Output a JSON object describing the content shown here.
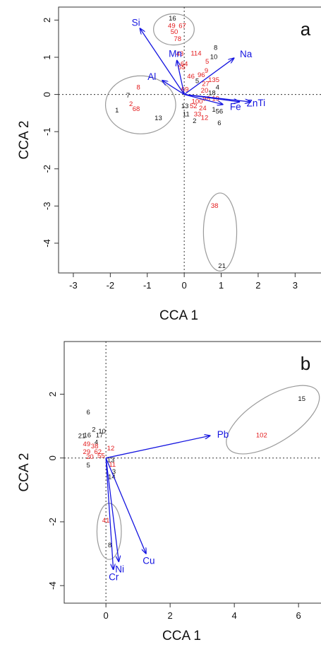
{
  "chart_data": [
    {
      "type": "scatter",
      "panel_label": "a",
      "xlabel": "CCA 1",
      "ylabel": "CCA 2",
      "xlim": [
        -3.4,
        3.7
      ],
      "ylim": [
        -4.8,
        2.35
      ],
      "xticks": [
        -3,
        -2,
        -1,
        0,
        1,
        2,
        3
      ],
      "yticks": [
        -4,
        -3,
        -2,
        -1,
        0,
        1,
        2
      ],
      "colors": {
        "arrow": "#1515e0",
        "red_site": "#e31a1c",
        "black_site": "#111111",
        "ellipse": "#9a9a9a",
        "axis": "#555555"
      },
      "vectors": [
        {
          "name": "Si",
          "x": -1.2,
          "y": 1.78
        },
        {
          "name": "Mn",
          "x": -0.2,
          "y": 0.92
        },
        {
          "name": "Na",
          "x": 1.35,
          "y": 0.98
        },
        {
          "name": "Al",
          "x": -0.6,
          "y": 0.38
        },
        {
          "name": "Zn",
          "x": 1.5,
          "y": -0.2
        },
        {
          "name": "Ti",
          "x": 1.8,
          "y": -0.2
        },
        {
          "name": "Fe",
          "x": 1.05,
          "y": -0.27
        }
      ],
      "sites": [
        {
          "label": "16",
          "x": -0.32,
          "y": 2.06,
          "color": "black"
        },
        {
          "label": "49",
          "x": -0.34,
          "y": 1.86,
          "color": "red"
        },
        {
          "label": "67",
          "x": -0.05,
          "y": 1.86,
          "color": "red"
        },
        {
          "label": "50",
          "x": -0.27,
          "y": 1.69,
          "color": "red"
        },
        {
          "label": "78",
          "x": -0.18,
          "y": 1.5,
          "color": "red"
        },
        {
          "label": "43",
          "x": -0.12,
          "y": 1.1,
          "color": "red"
        },
        {
          "label": "114",
          "x": 0.32,
          "y": 1.11,
          "color": "red"
        },
        {
          "label": "8",
          "x": 0.85,
          "y": 1.27,
          "color": "black"
        },
        {
          "label": "10",
          "x": 0.8,
          "y": 1.02,
          "color": "black"
        },
        {
          "label": "5",
          "x": 0.62,
          "y": 0.9,
          "color": "red"
        },
        {
          "label": "64",
          "x": 0.0,
          "y": 0.83,
          "color": "red"
        },
        {
          "label": "65",
          "x": -0.07,
          "y": 0.74,
          "color": "red"
        },
        {
          "label": "46",
          "x": 0.18,
          "y": 0.5,
          "color": "red"
        },
        {
          "label": "96",
          "x": 0.46,
          "y": 0.53,
          "color": "red"
        },
        {
          "label": "9",
          "x": 0.6,
          "y": 0.65,
          "color": "red"
        },
        {
          "label": "5",
          "x": 0.35,
          "y": 0.37,
          "color": "black"
        },
        {
          "label": "135",
          "x": 0.8,
          "y": 0.4,
          "color": "red"
        },
        {
          "label": "27",
          "x": 0.58,
          "y": 0.3,
          "color": "red"
        },
        {
          "label": "4",
          "x": 0.9,
          "y": 0.2,
          "color": "black"
        },
        {
          "label": "69",
          "x": 0.02,
          "y": 0.14,
          "color": "red"
        },
        {
          "label": "20",
          "x": 0.55,
          "y": 0.12,
          "color": "red"
        },
        {
          "label": "18",
          "x": 0.75,
          "y": 0.05,
          "color": "black"
        },
        {
          "label": "98",
          "x": 0.6,
          "y": -0.1,
          "color": "red"
        },
        {
          "label": "100",
          "x": 0.35,
          "y": -0.18,
          "color": "red"
        },
        {
          "label": "19",
          "x": 0.85,
          "y": -0.1,
          "color": "red"
        },
        {
          "label": "13",
          "x": 0.02,
          "y": -0.3,
          "color": "black"
        },
        {
          "label": "52",
          "x": 0.25,
          "y": -0.3,
          "color": "red"
        },
        {
          "label": "24",
          "x": 0.5,
          "y": -0.36,
          "color": "red"
        },
        {
          "label": "1",
          "x": 0.8,
          "y": -0.4,
          "color": "black"
        },
        {
          "label": "56",
          "x": 0.95,
          "y": -0.45,
          "color": "black"
        },
        {
          "label": "11",
          "x": 0.05,
          "y": -0.52,
          "color": "black"
        },
        {
          "label": "33",
          "x": 0.36,
          "y": -0.52,
          "color": "red"
        },
        {
          "label": "12",
          "x": 0.55,
          "y": -0.62,
          "color": "red"
        },
        {
          "label": "2",
          "x": 0.28,
          "y": -0.7,
          "color": "black"
        },
        {
          "label": "6",
          "x": 0.95,
          "y": -0.76,
          "color": "black"
        },
        {
          "label": "8",
          "x": -1.24,
          "y": 0.2,
          "color": "red"
        },
        {
          "label": "7",
          "x": -1.52,
          "y": -0.02,
          "color": "black"
        },
        {
          "label": "2",
          "x": -1.44,
          "y": -0.25,
          "color": "red"
        },
        {
          "label": "68",
          "x": -1.3,
          "y": -0.38,
          "color": "red"
        },
        {
          "label": "1",
          "x": -1.82,
          "y": -0.42,
          "color": "black"
        },
        {
          "label": "13",
          "x": -0.7,
          "y": -0.63,
          "color": "black"
        },
        {
          "label": "38",
          "x": 0.82,
          "y": -2.98,
          "color": "red"
        },
        {
          "label": "21",
          "x": 1.02,
          "y": -4.6,
          "color": "black"
        }
      ],
      "ellipses": [
        {
          "cx": -0.28,
          "cy": 1.75,
          "rx": 0.55,
          "ry": 0.42
        },
        {
          "cx": -1.18,
          "cy": -0.28,
          "rx": 0.95,
          "ry": 0.78
        },
        {
          "cx": 0.97,
          "cy": -3.7,
          "rx": 0.45,
          "ry": 1.05
        }
      ]
    },
    {
      "type": "scatter",
      "panel_label": "b",
      "xlabel": "CCA 1",
      "ylabel": "CCA 2",
      "xlim": [
        -1.3,
        6.7
      ],
      "ylim": [
        -4.55,
        3.65
      ],
      "xticks": [
        0,
        2,
        4,
        6
      ],
      "yticks": [
        -4,
        -2,
        0,
        2
      ],
      "colors": {
        "arrow": "#1515e0",
        "red_site": "#e31a1c",
        "black_site": "#111111",
        "ellipse": "#9a9a9a",
        "axis": "#555555"
      },
      "vectors": [
        {
          "name": "Pb",
          "x": 3.25,
          "y": 0.7
        },
        {
          "name": "Cu",
          "x": 1.25,
          "y": -3.0
        },
        {
          "name": "Ni",
          "x": 0.4,
          "y": -3.25
        },
        {
          "name": "Cr",
          "x": 0.23,
          "y": -3.5
        }
      ],
      "sites": [
        {
          "label": "6",
          "x": -0.55,
          "y": 1.45,
          "color": "black"
        },
        {
          "label": "2",
          "x": -0.38,
          "y": 0.9,
          "color": "black"
        },
        {
          "label": "10",
          "x": -0.12,
          "y": 0.85,
          "color": "black"
        },
        {
          "label": "21",
          "x": -0.75,
          "y": 0.7,
          "color": "black"
        },
        {
          "label": "16",
          "x": -0.58,
          "y": 0.72,
          "color": "black"
        },
        {
          "label": "17",
          "x": -0.2,
          "y": 0.72,
          "color": "black"
        },
        {
          "label": "4",
          "x": -0.3,
          "y": 0.5,
          "color": "black"
        },
        {
          "label": "49",
          "x": -0.6,
          "y": 0.45,
          "color": "red"
        },
        {
          "label": "38",
          "x": -0.35,
          "y": 0.38,
          "color": "red"
        },
        {
          "label": "12",
          "x": 0.15,
          "y": 0.32,
          "color": "red"
        },
        {
          "label": "29",
          "x": -0.6,
          "y": 0.2,
          "color": "red"
        },
        {
          "label": "62",
          "x": -0.25,
          "y": 0.2,
          "color": "red"
        },
        {
          "label": "20",
          "x": -0.5,
          "y": 0.05,
          "color": "red"
        },
        {
          "label": "55",
          "x": -0.15,
          "y": 0.08,
          "color": "red"
        },
        {
          "label": "13",
          "x": 0.15,
          "y": -0.05,
          "color": "black"
        },
        {
          "label": "5",
          "x": -0.55,
          "y": -0.22,
          "color": "black"
        },
        {
          "label": "11",
          "x": 0.2,
          "y": -0.2,
          "color": "red"
        },
        {
          "label": "3",
          "x": 0.25,
          "y": -0.42,
          "color": "black"
        },
        {
          "label": "14",
          "x": 0.18,
          "y": -0.58,
          "color": "black"
        },
        {
          "label": "41",
          "x": 0.0,
          "y": -1.95,
          "color": "red"
        },
        {
          "label": "8",
          "x": 0.12,
          "y": -2.72,
          "color": "black"
        },
        {
          "label": "15",
          "x": 6.1,
          "y": 1.87,
          "color": "black"
        },
        {
          "label": "102",
          "x": 4.85,
          "y": 0.72,
          "color": "red"
        }
      ],
      "ellipses": [
        {
          "cx": 5.2,
          "cy": 1.2,
          "rx": 1.65,
          "ry": 0.72,
          "rotate": -32
        },
        {
          "cx": 0.1,
          "cy": -2.3,
          "rx": 0.38,
          "ry": 0.88
        }
      ]
    }
  ]
}
